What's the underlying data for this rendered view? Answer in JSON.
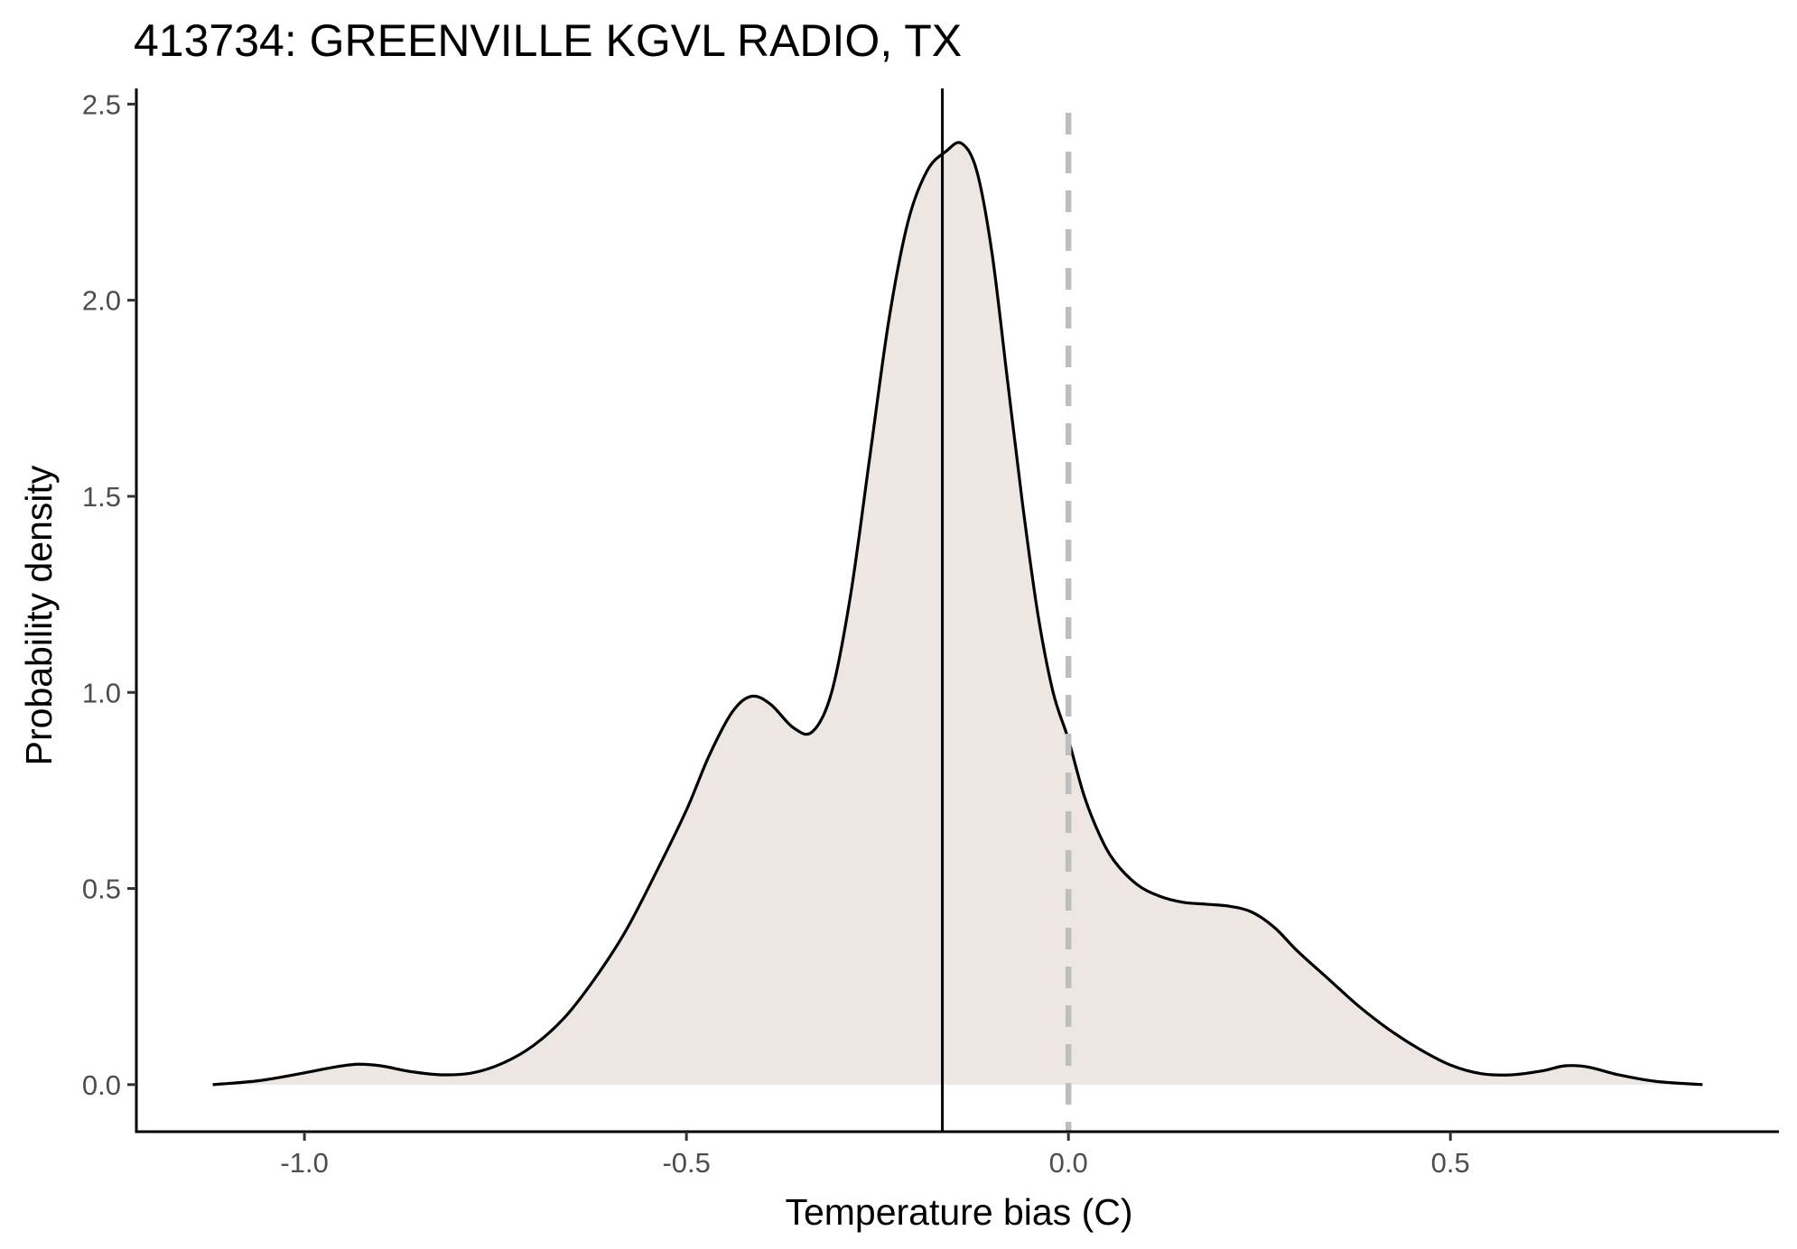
{
  "chart_data": {
    "type": "area",
    "title": "413734: GREENVILLE KGVL RADIO, TX",
    "xlabel": "Temperature bias (C)",
    "ylabel": "Probability density",
    "xlim": [
      -1.22,
      0.93
    ],
    "ylim": [
      -0.12,
      2.54
    ],
    "x_ticks": [
      -1.0,
      -0.5,
      0.0,
      0.5
    ],
    "x_tick_labels": [
      "-1.0",
      "-0.5",
      "0.0",
      "0.5"
    ],
    "y_ticks": [
      0.0,
      0.5,
      1.0,
      1.5,
      2.0,
      2.5
    ],
    "y_tick_labels": [
      "0.0",
      "0.5",
      "1.0",
      "1.5",
      "2.0",
      "2.5"
    ],
    "grid": false,
    "legend": "none",
    "fill_color": "#ede6e2",
    "line_color": "#000000",
    "reference_lines": [
      {
        "x": -0.165,
        "style": "solid",
        "color": "#000000"
      },
      {
        "x": 0.0,
        "style": "dashed",
        "color": "#bebebe"
      }
    ],
    "series": [
      {
        "x": [
          -1.12,
          -1.06,
          -1.0,
          -0.96,
          -0.93,
          -0.9,
          -0.86,
          -0.82,
          -0.78,
          -0.74,
          -0.7,
          -0.66,
          -0.62,
          -0.58,
          -0.54,
          -0.5,
          -0.47,
          -0.44,
          -0.415,
          -0.39,
          -0.36,
          -0.335,
          -0.31,
          -0.285,
          -0.26,
          -0.235,
          -0.21,
          -0.185,
          -0.16,
          -0.14,
          -0.12,
          -0.1,
          -0.08,
          -0.06,
          -0.04,
          -0.02,
          0.0,
          0.02,
          0.04,
          0.06,
          0.09,
          0.12,
          0.15,
          0.18,
          0.21,
          0.24,
          0.27,
          0.3,
          0.34,
          0.38,
          0.42,
          0.46,
          0.5,
          0.54,
          0.58,
          0.62,
          0.65,
          0.68,
          0.72,
          0.77,
          0.83
        ],
        "y": [
          0.0,
          0.01,
          0.03,
          0.045,
          0.052,
          0.048,
          0.033,
          0.025,
          0.03,
          0.055,
          0.1,
          0.17,
          0.27,
          0.39,
          0.54,
          0.7,
          0.84,
          0.95,
          0.99,
          0.97,
          0.91,
          0.9,
          1.0,
          1.25,
          1.6,
          1.95,
          2.2,
          2.33,
          2.38,
          2.4,
          2.33,
          2.12,
          1.8,
          1.48,
          1.2,
          1.0,
          0.88,
          0.74,
          0.64,
          0.57,
          0.51,
          0.48,
          0.465,
          0.46,
          0.455,
          0.44,
          0.4,
          0.34,
          0.27,
          0.2,
          0.14,
          0.09,
          0.05,
          0.028,
          0.025,
          0.035,
          0.048,
          0.045,
          0.025,
          0.008,
          0.0
        ]
      }
    ]
  }
}
